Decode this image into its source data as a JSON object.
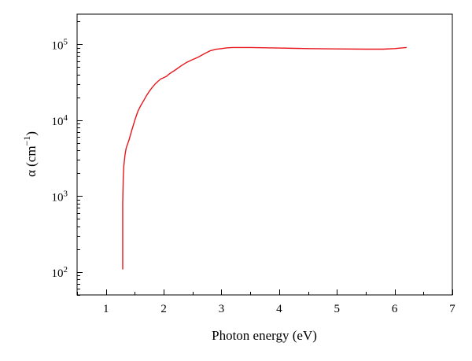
{
  "chart_data": {
    "type": "line",
    "xlabel": "Photon energy (eV)",
    "ylabel": {
      "base": "α (cm",
      "sup": "−1",
      "end": ")"
    },
    "xlim": [
      0.5,
      7
    ],
    "ylim": [
      50,
      250000
    ],
    "y_scale": "log",
    "x_ticks": [
      1,
      2,
      3,
      4,
      5,
      6,
      7
    ],
    "y_ticks": [
      {
        "value": 100,
        "base": "10",
        "exp": "2"
      },
      {
        "value": 1000,
        "base": "10",
        "exp": "3"
      },
      {
        "value": 10000,
        "base": "10",
        "exp": "4"
      },
      {
        "value": 100000,
        "base": "10",
        "exp": "5"
      }
    ],
    "grid": false,
    "series": [
      {
        "color": "#e8161c",
        "points": [
          [
            1.29,
            110
          ],
          [
            1.29,
            300
          ],
          [
            1.29,
            800
          ],
          [
            1.3,
            1800
          ],
          [
            1.31,
            2500
          ],
          [
            1.33,
            3500
          ],
          [
            1.35,
            4300
          ],
          [
            1.4,
            5500
          ],
          [
            1.45,
            7500
          ],
          [
            1.5,
            10000
          ],
          [
            1.55,
            13000
          ],
          [
            1.6,
            15500
          ],
          [
            1.65,
            18000
          ],
          [
            1.7,
            21000
          ],
          [
            1.75,
            24000
          ],
          [
            1.8,
            27000
          ],
          [
            1.85,
            30000
          ],
          [
            1.9,
            32500
          ],
          [
            1.95,
            35000
          ],
          [
            2.0,
            36500
          ],
          [
            2.05,
            38000
          ],
          [
            2.1,
            41000
          ],
          [
            2.2,
            46000
          ],
          [
            2.3,
            52000
          ],
          [
            2.4,
            58000
          ],
          [
            2.5,
            63000
          ],
          [
            2.6,
            68000
          ],
          [
            2.7,
            75000
          ],
          [
            2.8,
            82000
          ],
          [
            2.9,
            86000
          ],
          [
            3.0,
            88000
          ],
          [
            3.1,
            90000
          ],
          [
            3.2,
            91000
          ],
          [
            3.5,
            91000
          ],
          [
            4.0,
            89500
          ],
          [
            4.5,
            88000
          ],
          [
            5.0,
            87000
          ],
          [
            5.5,
            86500
          ],
          [
            5.8,
            86500
          ],
          [
            6.0,
            88000
          ],
          [
            6.2,
            91000
          ]
        ]
      }
    ]
  }
}
